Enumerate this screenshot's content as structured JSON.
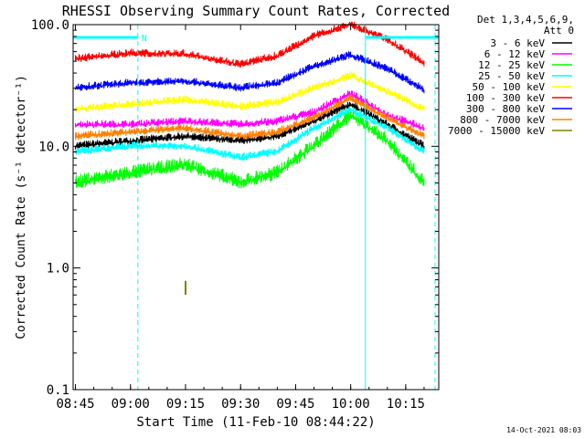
{
  "chart_data": {
    "type": "line",
    "title": "RHESSI Observing Summary Count Rates, Corrected",
    "xlabel": "Start Time (11-Feb-10 08:44:22)",
    "ylabel": "Corrected Count Rate (s⁻¹ detector⁻¹)",
    "yscale": "log",
    "ylim": [
      0.1,
      100.0
    ],
    "xlim": [
      "08:44:22",
      "10:24:00"
    ],
    "x_ticks": [
      "08:45",
      "09:00",
      "09:15",
      "09:30",
      "09:45",
      "10:00",
      "10:15"
    ],
    "y_ticks": [
      "100.0",
      "10.0",
      "1.0",
      "0.1"
    ],
    "legend_header": [
      "Det 1,3,4,5,6,9,",
      "Att 0"
    ],
    "legend_position": "right",
    "x": [
      "08:45",
      "09:00",
      "09:15",
      "09:30",
      "09:40",
      "09:50",
      "10:00",
      "10:10",
      "10:20"
    ],
    "series": [
      {
        "name": "3 - 6 keV",
        "color": "#000000",
        "values": [
          10,
          11,
          12,
          11,
          12,
          16,
          22,
          15,
          10
        ]
      },
      {
        "name": "6 - 12 keV",
        "color": "#ff00ff",
        "values": [
          15,
          15,
          16,
          15,
          16,
          19,
          27,
          18,
          14
        ]
      },
      {
        "name": "12 - 25 keV",
        "color": "#00ff00",
        "values": [
          5,
          6,
          7,
          5,
          6,
          10,
          18,
          11,
          5
        ]
      },
      {
        "name": "25 - 50 keV",
        "color": "#00ffff",
        "values": [
          9,
          10,
          10,
          8,
          9,
          14,
          20,
          14,
          9
        ]
      },
      {
        "name": "50 - 100 keV",
        "color": "#ffff00",
        "values": [
          20,
          22,
          24,
          21,
          23,
          30,
          38,
          28,
          20
        ]
      },
      {
        "name": "100 - 300 keV",
        "color": "#ff0000",
        "values": [
          52,
          58,
          57,
          47,
          55,
          80,
          100,
          75,
          48
        ]
      },
      {
        "name": "300 - 800 keV",
        "color": "#0000ff",
        "values": [
          30,
          33,
          34,
          30,
          33,
          45,
          56,
          43,
          29
        ]
      },
      {
        "name": "800 - 7000 keV",
        "color": "#ff8000",
        "values": [
          12,
          13,
          14,
          12,
          13,
          17,
          25,
          17,
          12
        ]
      },
      {
        "name": "7000 - 15000 keV",
        "color": "#808000",
        "values": [
          null,
          null,
          0.7,
          null,
          null,
          null,
          null,
          null,
          null
        ]
      }
    ],
    "annotations": [
      {
        "text": "N",
        "color": "#00ffff"
      }
    ],
    "night_intervals": [
      {
        "start": "08:44",
        "end": "09:02"
      },
      {
        "start": "10:04",
        "end": "10:24"
      }
    ],
    "saa_markers": [
      "08:44",
      "09:02",
      "10:04",
      "10:23"
    ],
    "footer_date": "14-Oct-2021 08:03"
  }
}
